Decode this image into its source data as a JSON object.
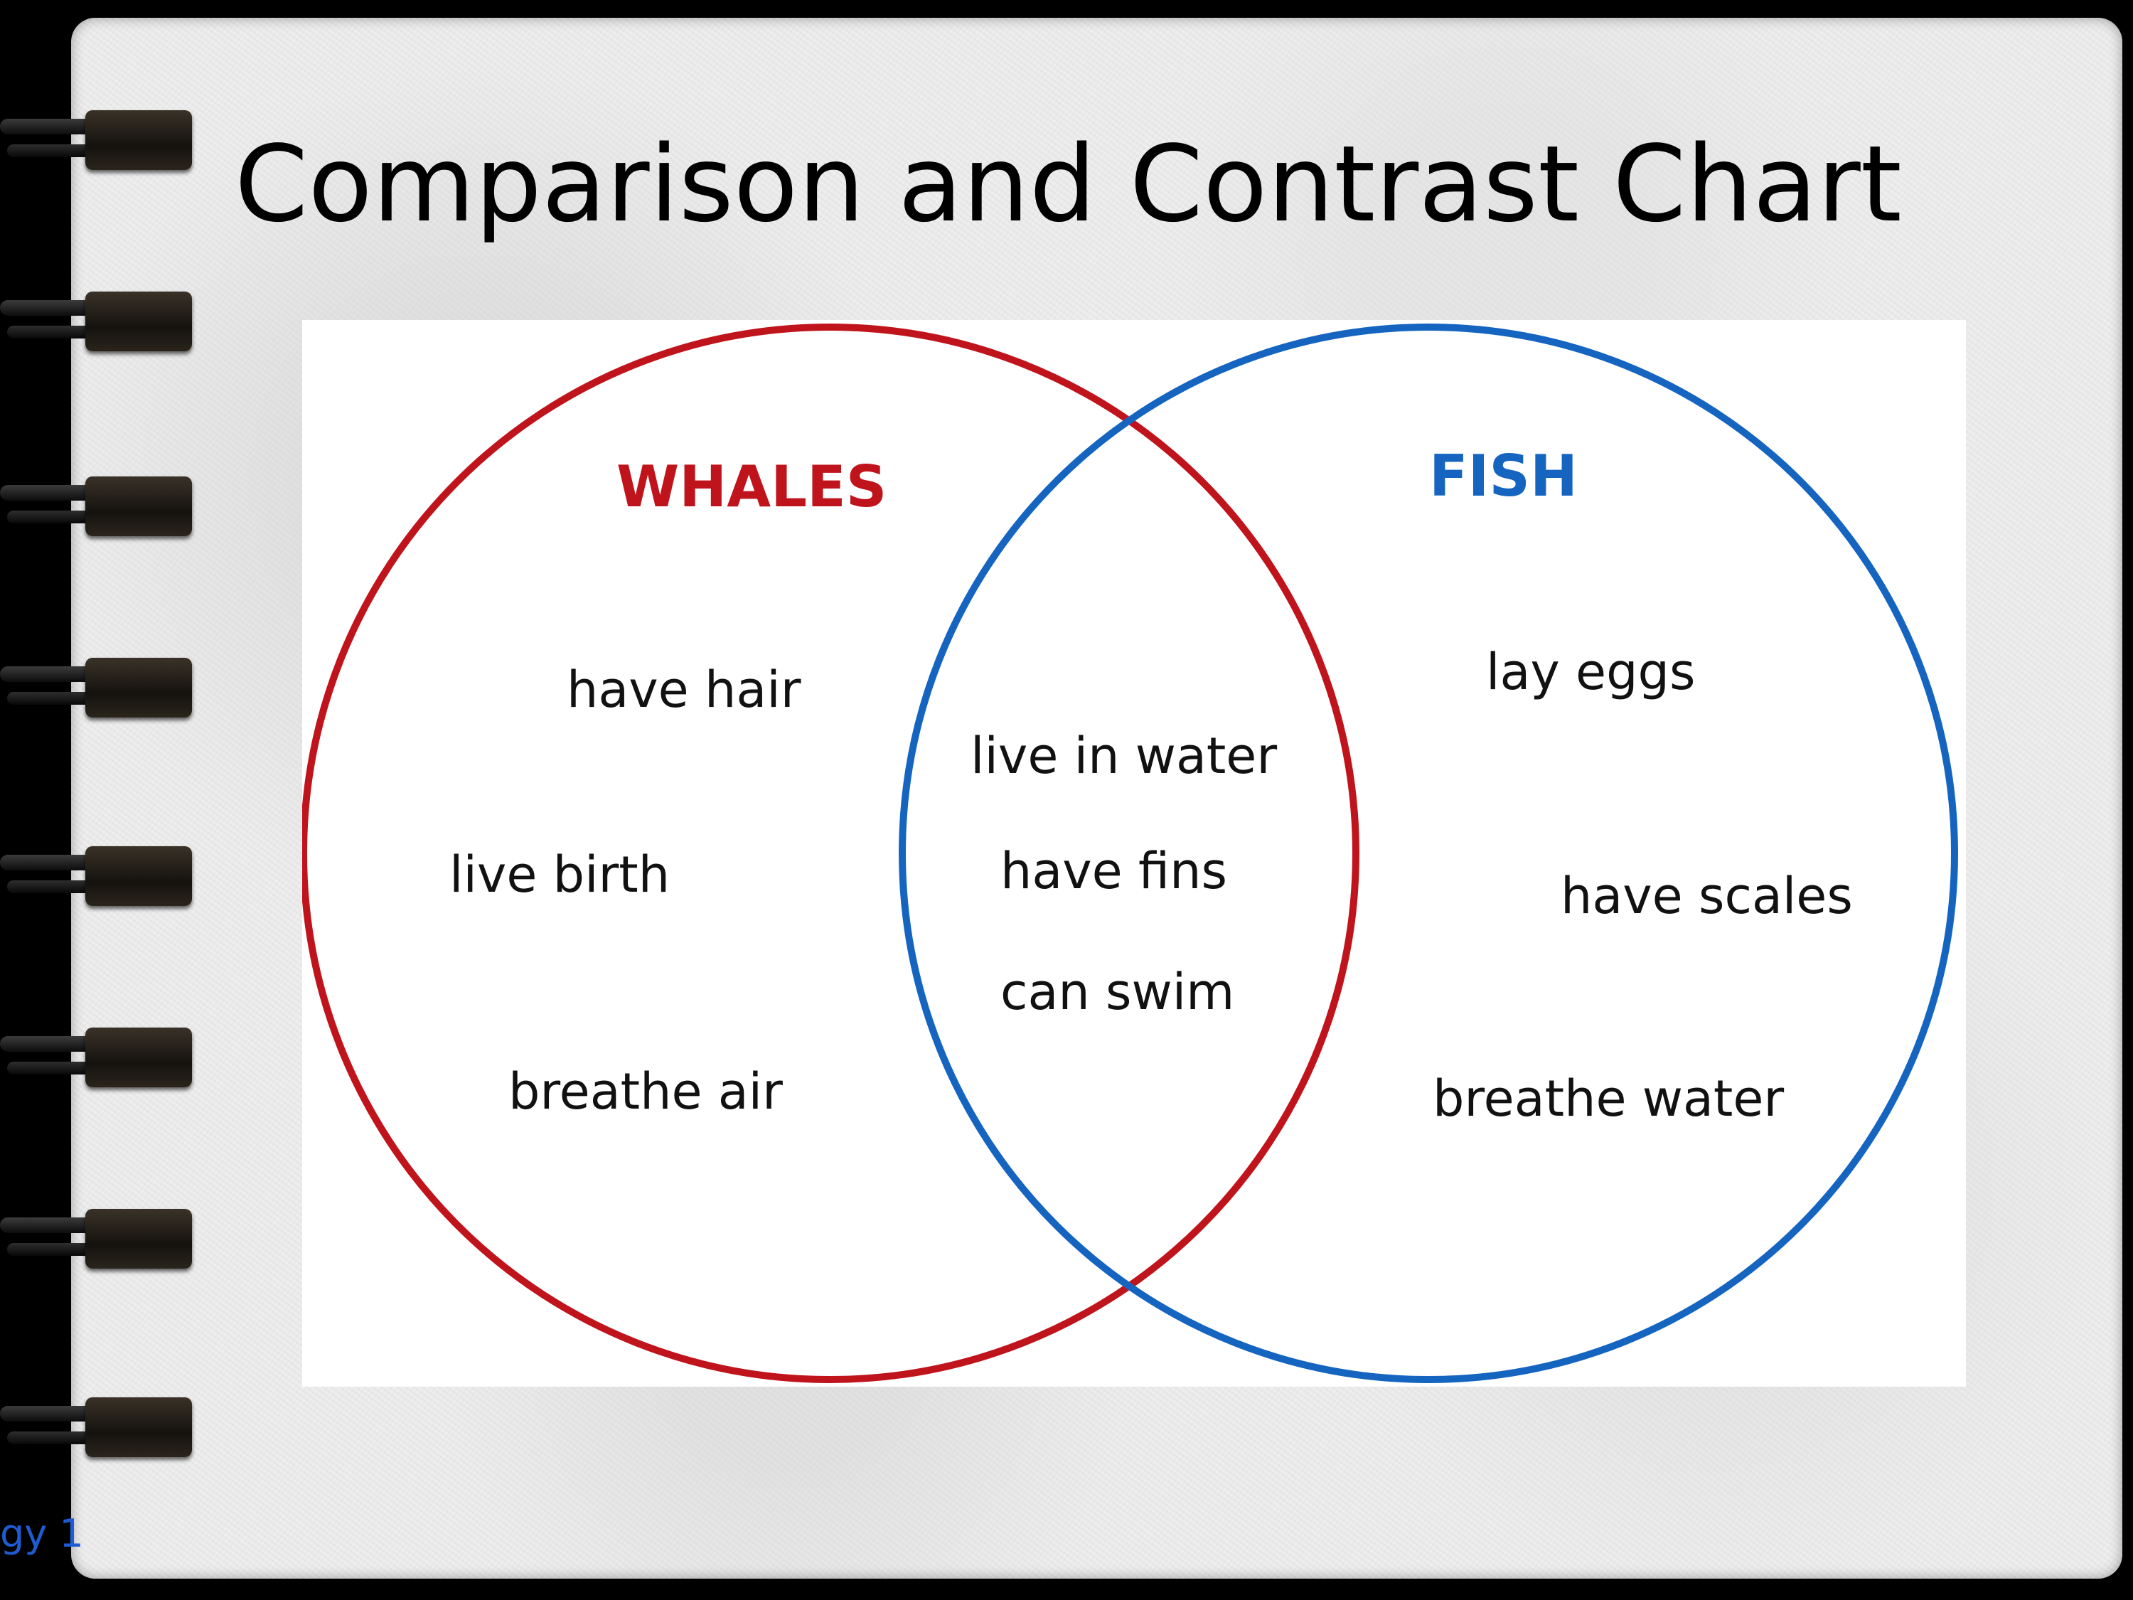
{
  "slide": {
    "title": "Comparison and Contrast Chart",
    "footer_fragment": "gy 1"
  },
  "venn": {
    "sets": [
      {
        "name": "WHALES",
        "color": "#c0141c",
        "items": [
          "have hair",
          "live birth",
          "breathe air"
        ]
      },
      {
        "name": "FISH",
        "color": "#1565c0",
        "items": [
          "lay eggs",
          "have scales",
          "breathe water"
        ]
      }
    ],
    "overlap_items": [
      "live in water",
      "have fins",
      "can swim"
    ]
  },
  "decor": {
    "binder_rings": 8,
    "page_color": "#eeeeee",
    "frame_color": "#000000"
  }
}
